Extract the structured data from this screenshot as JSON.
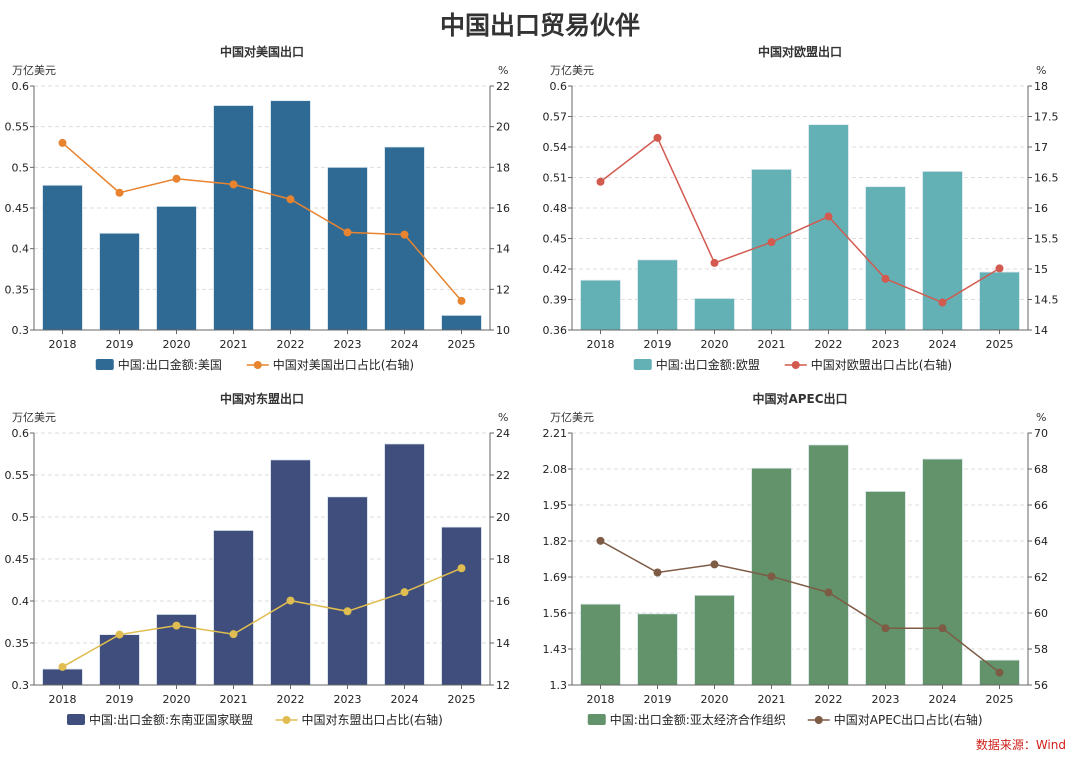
{
  "title": "中国出口贸易伙伴",
  "source": "数据来源：Wind",
  "chart_data": [
    {
      "type": "bar+line",
      "title": "中国对美国出口",
      "ylabel_left": "万亿美元",
      "ylabel_right": "%",
      "categories": [
        "2018",
        "2019",
        "2020",
        "2021",
        "2022",
        "2023",
        "2024",
        "2025"
      ],
      "ylim_left": [
        0.3,
        0.6
      ],
      "yticks_left": [
        "0.3",
        "0.35",
        "0.4",
        "0.45",
        "0.5",
        "0.55",
        "0.6"
      ],
      "ylim_right": [
        10,
        22
      ],
      "yticks_right": [
        "10",
        "12",
        "14",
        "16",
        "18",
        "20",
        "22"
      ],
      "bar_series": {
        "name": "中国:出口金额:美国",
        "color": "#2e6a94",
        "values": [
          0.478,
          0.419,
          0.452,
          0.576,
          0.582,
          0.5,
          0.525,
          0.318
        ]
      },
      "line_series": {
        "name": "中国对美国出口占比(右轴)",
        "color": "#e8832f",
        "values": [
          19.2,
          16.75,
          17.44,
          17.16,
          16.43,
          14.8,
          14.69,
          11.43
        ]
      },
      "grid": true,
      "legend": "bottom"
    },
    {
      "type": "bar+line",
      "title": "中国对欧盟出口",
      "ylabel_left": "万亿美元",
      "ylabel_right": "%",
      "categories": [
        "2018",
        "2019",
        "2020",
        "2021",
        "2022",
        "2023",
        "2024",
        "2025"
      ],
      "ylim_left": [
        0.36,
        0.6
      ],
      "yticks_left": [
        "0.36",
        "0.39",
        "0.42",
        "0.45",
        "0.48",
        "0.51",
        "0.54",
        "0.57",
        "0.6"
      ],
      "ylim_right": [
        14,
        18
      ],
      "yticks_right": [
        "14",
        "14.5",
        "15",
        "15.5",
        "16",
        "16.5",
        "17",
        "17.5",
        "18"
      ],
      "bar_series": {
        "name": "中国:出口金额:欧盟",
        "color": "#63b1b5",
        "values": [
          0.409,
          0.429,
          0.391,
          0.518,
          0.562,
          0.501,
          0.516,
          0.417
        ]
      },
      "line_series": {
        "name": "中国对欧盟出口占比(右轴)",
        "color": "#d25a4f",
        "values": [
          16.43,
          17.15,
          15.1,
          15.44,
          15.86,
          14.84,
          14.45,
          15.01
        ]
      },
      "grid": true,
      "legend": "bottom"
    },
    {
      "type": "bar+line",
      "title": "中国对东盟出口",
      "ylabel_left": "万亿美元",
      "ylabel_right": "%",
      "categories": [
        "2018",
        "2019",
        "2020",
        "2021",
        "2022",
        "2023",
        "2024",
        "2025"
      ],
      "ylim_left": [
        0.3,
        0.6
      ],
      "yticks_left": [
        "0.3",
        "0.35",
        "0.4",
        "0.45",
        "0.5",
        "0.55",
        "0.6"
      ],
      "ylim_right": [
        12,
        24
      ],
      "yticks_right": [
        "12",
        "14",
        "16",
        "18",
        "20",
        "22",
        "24"
      ],
      "bar_series": {
        "name": "中国:出口金额:东南亚国家联盟",
        "color": "#3f4e7c",
        "values": [
          0.319,
          0.36,
          0.384,
          0.484,
          0.568,
          0.524,
          0.587,
          0.488
        ]
      },
      "line_series": {
        "name": "中国对东盟出口占比(右轴)",
        "color": "#e0bd50",
        "values": [
          12.86,
          14.4,
          14.83,
          14.42,
          16.02,
          15.51,
          16.42,
          17.56
        ]
      },
      "grid": true,
      "legend": "bottom"
    },
    {
      "type": "bar+line",
      "title": "中国对APEC出口",
      "ylabel_left": "万亿美元",
      "ylabel_right": "%",
      "categories": [
        "2018",
        "2019",
        "2020",
        "2021",
        "2022",
        "2023",
        "2024",
        "2025"
      ],
      "ylim_left": [
        1.3,
        2.21
      ],
      "yticks_left": [
        "1.3",
        "1.43",
        "1.56",
        "1.69",
        "1.82",
        "1.95",
        "2.08",
        "2.21"
      ],
      "ylim_right": [
        56,
        70
      ],
      "yticks_right": [
        "56",
        "58",
        "60",
        "62",
        "64",
        "66",
        "68",
        "70"
      ],
      "bar_series": {
        "name": "中国:出口金额:亚太经济合作组织",
        "color": "#62936b",
        "values": [
          1.592,
          1.557,
          1.624,
          2.083,
          2.167,
          1.999,
          2.116,
          1.39
        ]
      },
      "line_series": {
        "name": "中国对APEC出口占比(右轴)",
        "color": "#7d5b45",
        "values": [
          64.01,
          62.25,
          62.7,
          62.03,
          61.14,
          59.15,
          59.15,
          56.69
        ]
      },
      "grid": true,
      "legend": "bottom"
    }
  ]
}
